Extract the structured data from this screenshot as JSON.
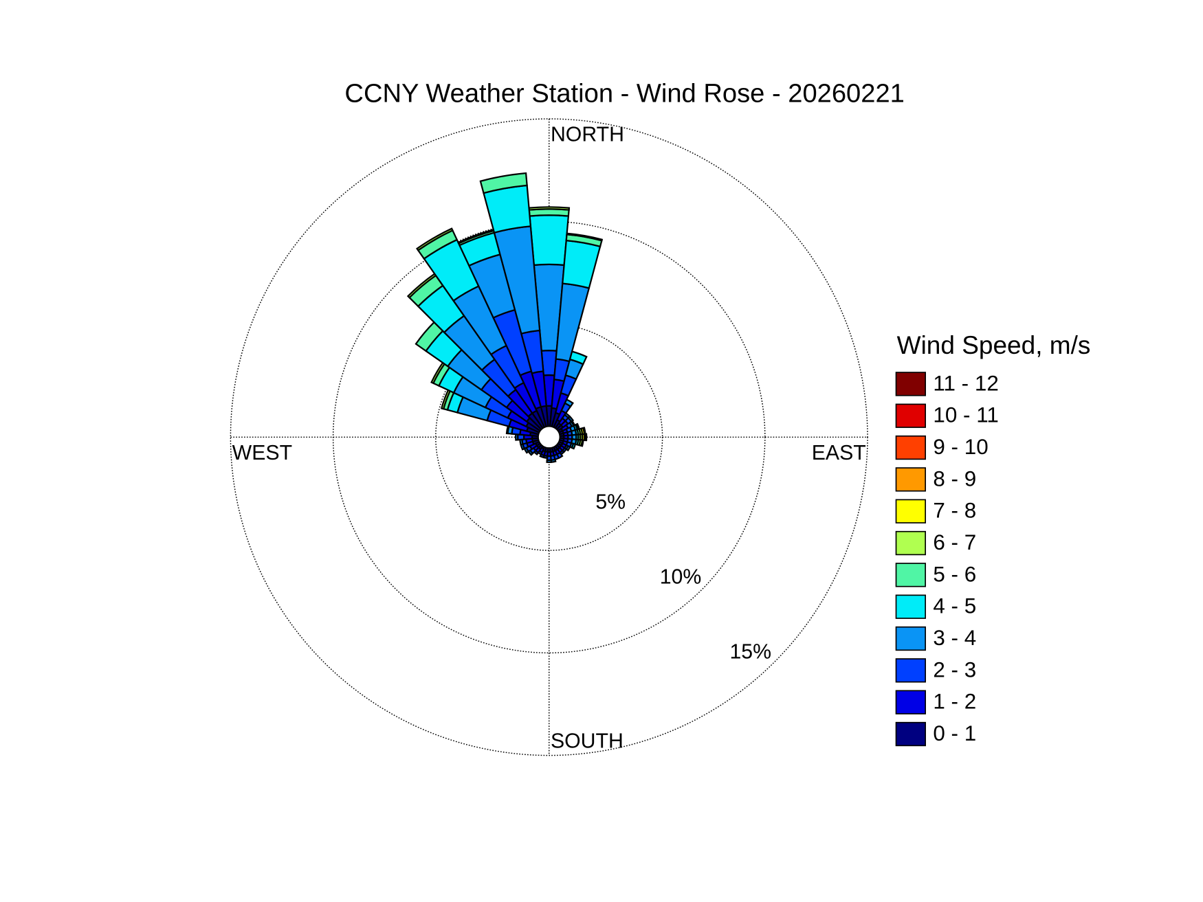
{
  "chart_data": {
    "type": "windrose",
    "title": "CCNY Weather Station - Wind Rose - 20260221",
    "legend_title": "Wind Speed, m/s",
    "direction_labels": [
      "NORTH",
      "EAST",
      "SOUTH",
      "WEST"
    ],
    "x": [
      0,
      10,
      20,
      30,
      40,
      50,
      60,
      70,
      80,
      90,
      100,
      110,
      120,
      130,
      140,
      150,
      160,
      170,
      180,
      190,
      200,
      210,
      220,
      230,
      240,
      250,
      260,
      270,
      280,
      290,
      300,
      310,
      320,
      330,
      340,
      350
    ],
    "rlim": [
      0,
      15
    ],
    "rticks": [
      {
        "value": 5,
        "label": "5%"
      },
      {
        "value": 10,
        "label": "10%"
      },
      {
        "value": 15,
        "label": "15%"
      }
    ],
    "series": [
      {
        "name": "0 - 1",
        "color": "#000080",
        "values": [
          1.0,
          0.9,
          0.7,
          0.4,
          0.3,
          0.3,
          0.2,
          0.2,
          0.2,
          0.2,
          0.2,
          0.2,
          0.2,
          0.2,
          0.2,
          0.2,
          0.2,
          0.2,
          0.2,
          0.2,
          0.2,
          0.1,
          0.2,
          0.2,
          0.2,
          0.3,
          0.3,
          0.3,
          0.4,
          0.6,
          0.7,
          0.8,
          0.9,
          0.9,
          1.0,
          1.0
        ]
      },
      {
        "name": "1 - 2",
        "color": "#0000e6",
        "values": [
          1.5,
          1.4,
          1.0,
          0.5,
          0.3,
          0.3,
          0.3,
          0.2,
          0.2,
          0.2,
          0.2,
          0.2,
          0.2,
          0.2,
          0.2,
          0.2,
          0.2,
          0.2,
          0.2,
          0.2,
          0.2,
          0.2,
          0.2,
          0.2,
          0.3,
          0.3,
          0.3,
          0.4,
          0.5,
          0.9,
          1.0,
          1.2,
          1.4,
          1.5,
          1.8,
          1.7
        ]
      },
      {
        "name": "2 - 3",
        "color": "#0040ff",
        "values": [
          1.2,
          1.0,
          0.9,
          0.4,
          0.2,
          0.2,
          0.2,
          0.2,
          0.2,
          0.2,
          0.2,
          0.2,
          0.1,
          0.1,
          0.1,
          0.2,
          0.2,
          0.2,
          0.2,
          0.1,
          0.1,
          0.1,
          0.1,
          0.2,
          0.2,
          0.2,
          0.2,
          0.3,
          0.4,
          1.1,
          1.2,
          1.5,
          1.8,
          2.0,
          3.1,
          2.0
        ]
      },
      {
        "name": "3 - 4",
        "color": "#0a94f5",
        "values": [
          4.2,
          3.7,
          0.8,
          0.2,
          0.1,
          0.1,
          0.1,
          0.2,
          0.2,
          0.2,
          0.2,
          0.1,
          0.1,
          0,
          0,
          0,
          0,
          0.1,
          0.1,
          0,
          0,
          0,
          0,
          0.1,
          0.1,
          0.1,
          0.1,
          0.1,
          0.2,
          1.5,
          1.7,
          2.0,
          2.6,
          3.2,
          2.8,
          5.1
        ]
      },
      {
        "name": "4 - 5",
        "color": "#00ecf8",
        "values": [
          2.4,
          2.1,
          0.4,
          0,
          0,
          0,
          0.05,
          0.1,
          0.1,
          0.1,
          0.1,
          0.1,
          0,
          0,
          0,
          0,
          0,
          0,
          0,
          0,
          0,
          0,
          0,
          0,
          0,
          0,
          0,
          0,
          0.05,
          0.5,
          0.8,
          1.3,
          1.8,
          2.5,
          1.1,
          2.0
        ]
      },
      {
        "name": "5 - 6",
        "color": "#50f5a5",
        "values": [
          0.3,
          0.3,
          0,
          0,
          0,
          0,
          0,
          0.05,
          0.1,
          0.1,
          0.1,
          0,
          0,
          0,
          0,
          0,
          0,
          0,
          0,
          0,
          0,
          0,
          0,
          0,
          0,
          0,
          0,
          0,
          0,
          0.2,
          0.3,
          0.6,
          0.6,
          0.5,
          0.1,
          0.6
        ]
      },
      {
        "name": "6 - 7",
        "color": "#b0ff50",
        "values": [
          0.1,
          0.05,
          0,
          0,
          0,
          0,
          0,
          0.05,
          0.1,
          0.1,
          0.1,
          0,
          0,
          0,
          0,
          0,
          0,
          0,
          0,
          0,
          0,
          0,
          0,
          0,
          0,
          0,
          0,
          0,
          0,
          0.1,
          0.1,
          0,
          0.1,
          0.1,
          0.05,
          0
        ]
      },
      {
        "name": "7 - 8",
        "color": "#ffff00",
        "values": [
          0,
          0,
          0,
          0,
          0,
          0,
          0,
          0,
          0.1,
          0.1,
          0.05,
          0,
          0,
          0,
          0,
          0,
          0,
          0,
          0,
          0,
          0,
          0,
          0,
          0,
          0,
          0,
          0,
          0,
          0,
          0,
          0,
          0,
          0,
          0,
          0,
          0
        ]
      },
      {
        "name": "8 - 9",
        "color": "#ff9900",
        "values": [
          0,
          0,
          0,
          0,
          0,
          0,
          0,
          0,
          0.05,
          0.05,
          0,
          0,
          0,
          0,
          0,
          0,
          0,
          0,
          0,
          0,
          0,
          0,
          0,
          0,
          0,
          0,
          0,
          0,
          0,
          0,
          0,
          0,
          0,
          0,
          0,
          0
        ]
      },
      {
        "name": "9 - 10",
        "color": "#ff4000",
        "values": [
          0,
          0,
          0,
          0,
          0,
          0,
          0,
          0,
          0,
          0.05,
          0,
          0,
          0,
          0,
          0,
          0,
          0,
          0,
          0,
          0,
          0,
          0,
          0,
          0,
          0,
          0,
          0,
          0,
          0,
          0,
          0,
          0,
          0,
          0,
          0,
          0
        ]
      },
      {
        "name": "10 - 11",
        "color": "#e00000",
        "values": [
          0,
          0,
          0,
          0,
          0,
          0,
          0,
          0,
          0,
          0,
          0,
          0,
          0,
          0,
          0,
          0,
          0,
          0,
          0,
          0,
          0,
          0,
          0,
          0,
          0,
          0,
          0,
          0,
          0,
          0,
          0,
          0,
          0,
          0,
          0,
          0
        ]
      },
      {
        "name": "11 - 12",
        "color": "#800000",
        "values": [
          0,
          0,
          0,
          0,
          0,
          0,
          0,
          0,
          0,
          0,
          0,
          0,
          0,
          0,
          0,
          0,
          0,
          0,
          0,
          0,
          0,
          0,
          0,
          0,
          0,
          0,
          0,
          0,
          0,
          0,
          0,
          0,
          0,
          0,
          0,
          0
        ]
      }
    ]
  }
}
